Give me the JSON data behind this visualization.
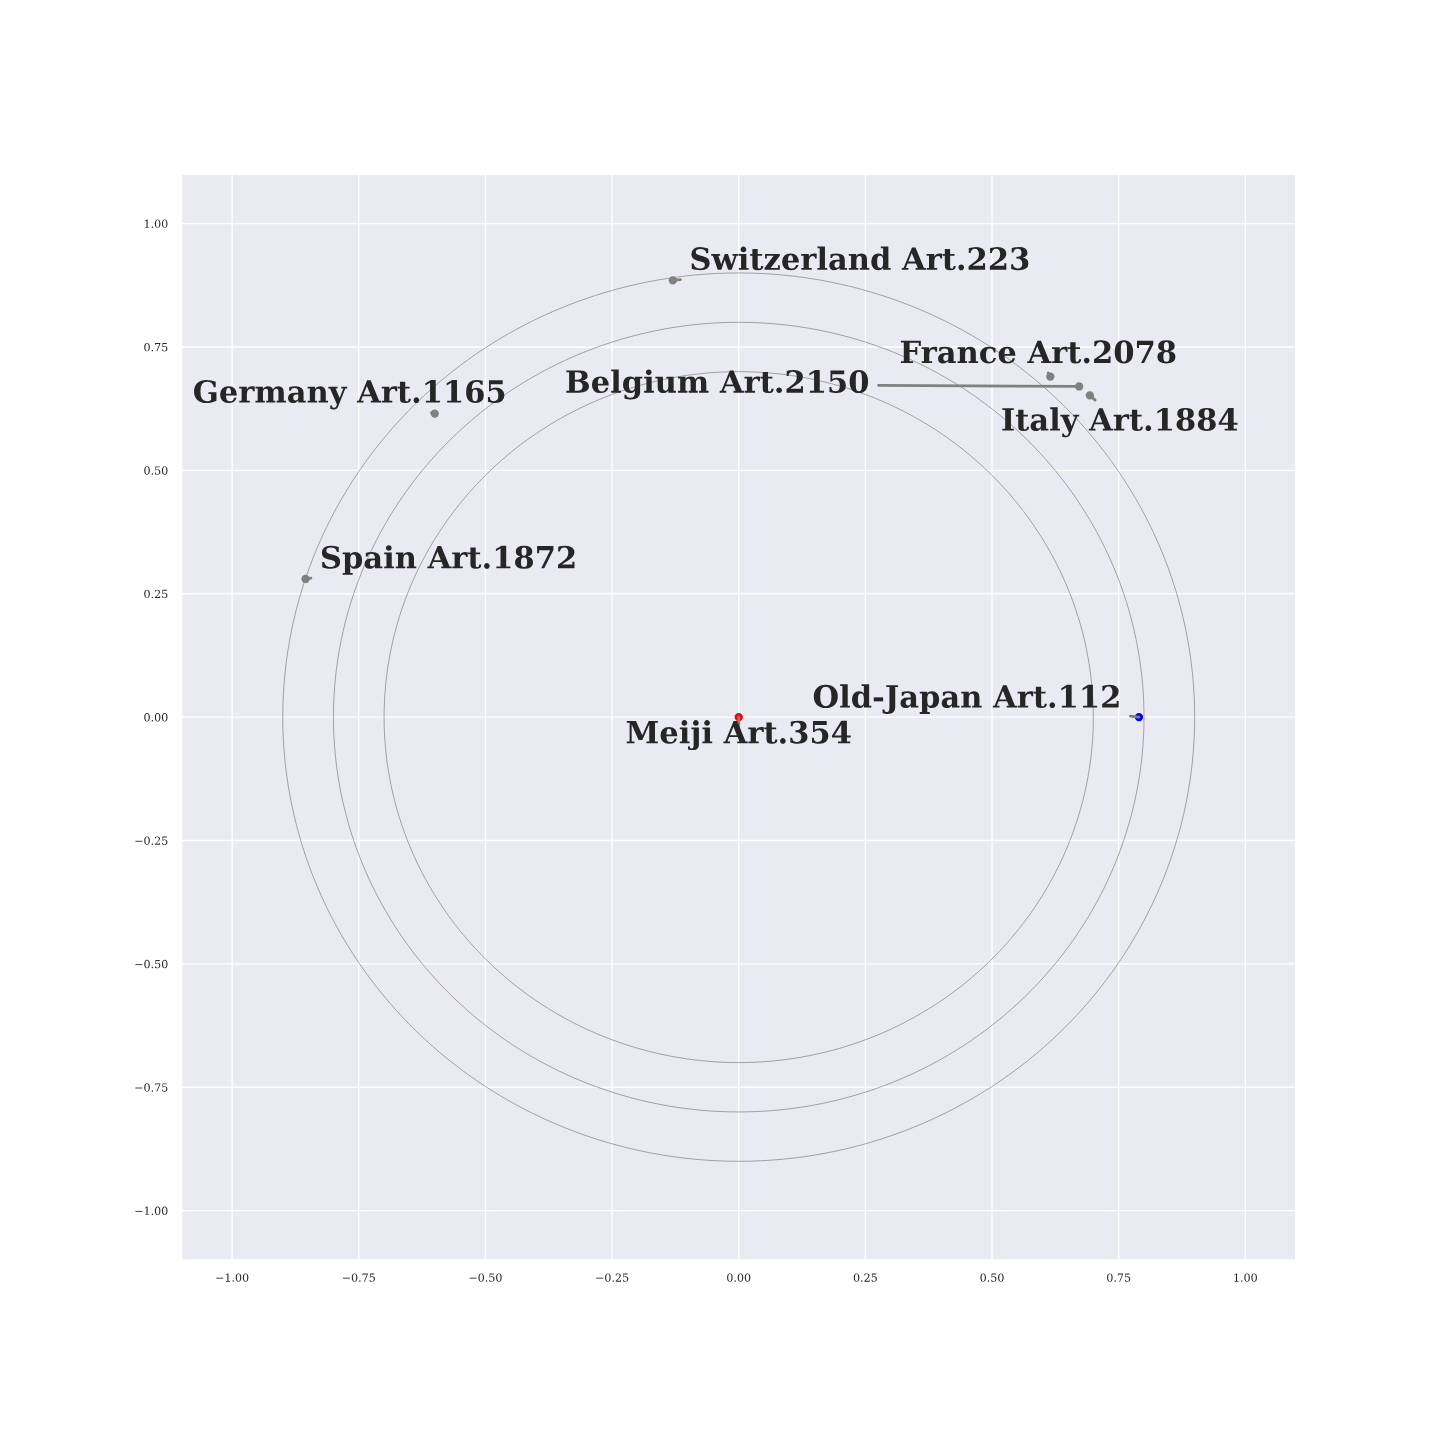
{
  "chart_data": {
    "type": "scatter",
    "xlim": [
      -1.1,
      1.1
    ],
    "ylim": [
      -1.1,
      1.1
    ],
    "xticks": [
      {
        "value": -1,
        "label": "−1.00"
      },
      {
        "value": -0.75,
        "label": "−0.75"
      },
      {
        "value": -0.5,
        "label": "−0.50"
      },
      {
        "value": -0.25,
        "label": "−0.25"
      },
      {
        "value": 0,
        "label": "0.00"
      },
      {
        "value": 0.25,
        "label": "0.25"
      },
      {
        "value": 0.5,
        "label": "0.50"
      },
      {
        "value": 0.75,
        "label": "0.75"
      },
      {
        "value": 1,
        "label": "1.00"
      }
    ],
    "yticks": [
      {
        "value": -1,
        "label": "−1.00"
      },
      {
        "value": -0.75,
        "label": "−0.75"
      },
      {
        "value": -0.5,
        "label": "−0.50"
      },
      {
        "value": -0.25,
        "label": "−0.25"
      },
      {
        "value": 0,
        "label": "0.00"
      },
      {
        "value": 0.25,
        "label": "0.25"
      },
      {
        "value": 0.5,
        "label": "0.50"
      },
      {
        "value": 0.75,
        "label": "0.75"
      },
      {
        "value": 1,
        "label": "1.00"
      }
    ],
    "grid": true,
    "legend": false,
    "marker": "circle",
    "series": [
      {
        "color": "#808080",
        "x": [
          -0.13,
          0.615,
          0.672,
          0.693,
          -0.6,
          -0.855
        ],
        "values": [
          0.885,
          0.69,
          0.67,
          0.652,
          0.615,
          0.28
        ]
      },
      {
        "color": "#ff0000",
        "x": [
          0
        ],
        "values": [
          0
        ]
      },
      {
        "color": "#0000ff",
        "x": [
          0.79
        ],
        "values": [
          0
        ]
      }
    ],
    "annotations": [
      {
        "text": "Switzerland Art.223",
        "x": -0.13,
        "y": 0.885
      },
      {
        "text": "France Art.2078",
        "x": 0.615,
        "y": 0.69
      },
      {
        "text": "Belgium Art.2150",
        "x": 0.672,
        "y": 0.67
      },
      {
        "text": "Italy Art.1884",
        "x": 0.693,
        "y": 0.652
      },
      {
        "text": "Germany Art.1165",
        "x": -0.6,
        "y": 0.615
      },
      {
        "text": "Spain Art.1872",
        "x": -0.855,
        "y": 0.28
      },
      {
        "text": "Old-Japan Art.112",
        "x": 0.79,
        "y": 0
      },
      {
        "text": "Meiji Art.354",
        "x": 0,
        "y": 0
      }
    ]
  }
}
